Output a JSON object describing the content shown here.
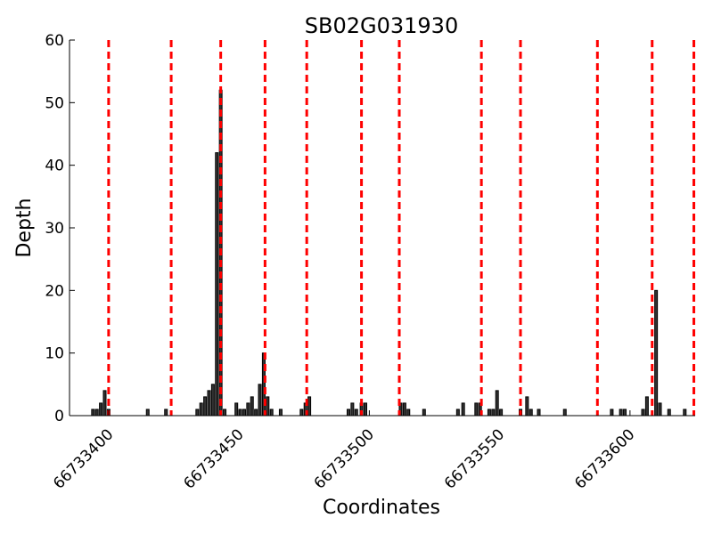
{
  "chart_data": {
    "type": "bar",
    "title": "SB02G031930",
    "xlabel": "Coordinates",
    "ylabel": "Depth",
    "xlim": [
      66733385,
      66733625
    ],
    "ylim": [
      0,
      60
    ],
    "yticks": [
      0,
      10,
      20,
      30,
      40,
      50,
      60
    ],
    "xticks": [
      66733400,
      66733450,
      66733500,
      66733550,
      66733600
    ],
    "grid": false,
    "bar_color": "#333333",
    "line_color": "#ff0000",
    "bars": [
      {
        "x": 66733394,
        "y": 1
      },
      {
        "x": 66733395,
        "y": 1
      },
      {
        "x": 66733396,
        "y": 2
      },
      {
        "x": 66733398,
        "y": 4
      },
      {
        "x": 66733400,
        "y": 1
      },
      {
        "x": 66733400,
        "y": 1
      },
      {
        "x": 66733400,
        "y": 1
      },
      {
        "x": 66733400,
        "y": 1
      },
      {
        "x": 66733400,
        "y": 1
      },
      {
        "x": 66733400,
        "y": 1
      },
      {
        "x": 66733400,
        "y": 1
      },
      {
        "x": 66733400,
        "y": 1
      },
      {
        "x": 66733400,
        "y": 1
      },
      {
        "x": 66733400,
        "y": 1
      },
      {
        "x": 66733400,
        "y": 1
      },
      {
        "x": 66733400,
        "y": 1
      },
      {
        "x": 66733400,
        "y": 1
      },
      {
        "x": 66733400,
        "y": 1
      }
    ],
    "bars_all": [
      {
        "x": 66733394,
        "y": 1
      },
      {
        "x": 66733395.5,
        "y": 1
      },
      {
        "x": 66733397,
        "y": 2
      },
      {
        "x": 66733398.5,
        "y": 4
      },
      {
        "x": 66733400,
        "y": 1
      },
      {
        "x": 66733415,
        "y": 1
      },
      {
        "x": 66733422,
        "y": 1
      },
      {
        "x": 66733434,
        "y": 1
      },
      {
        "x": 66733435.5,
        "y": 2
      },
      {
        "x": 66733437,
        "y": 3
      },
      {
        "x": 66733438.5,
        "y": 4
      },
      {
        "x": 66733440,
        "y": 5
      },
      {
        "x": 66733441.5,
        "y": 42
      },
      {
        "x": 66733443,
        "y": 52
      },
      {
        "x": 66733444.5,
        "y": 1
      },
      {
        "x": 66733449,
        "y": 2
      },
      {
        "x": 66733450.5,
        "y": 1
      },
      {
        "x": 66733452,
        "y": 1
      },
      {
        "x": 66733453.5,
        "y": 2
      },
      {
        "x": 66733455,
        "y": 3
      },
      {
        "x": 66733456.5,
        "y": 1
      },
      {
        "x": 66733458,
        "y": 5
      },
      {
        "x": 66733459.5,
        "y": 10
      },
      {
        "x": 66733461,
        "y": 3
      },
      {
        "x": 66733462.5,
        "y": 1
      },
      {
        "x": 66733466,
        "y": 1
      },
      {
        "x": 66733474,
        "y": 1
      },
      {
        "x": 66733475.5,
        "y": 2
      },
      {
        "x": 66733477,
        "y": 3
      },
      {
        "x": 66733492,
        "y": 1
      },
      {
        "x": 66733493.5,
        "y": 2
      },
      {
        "x": 66733495,
        "y": 1
      },
      {
        "x": 66733497,
        "y": 2
      },
      {
        "x": 66733498.5,
        "y": 2
      },
      {
        "x": 66733512,
        "y": 2
      },
      {
        "x": 66733513.5,
        "y": 2
      },
      {
        "x": 66733515,
        "y": 1
      },
      {
        "x": 66733521,
        "y": 1
      },
      {
        "x": 66733534,
        "y": 1
      },
      {
        "x": 66733536,
        "y": 2
      },
      {
        "x": 66733541,
        "y": 2
      },
      {
        "x": 66733542.5,
        "y": 2
      },
      {
        "x": 66733546,
        "y": 1
      },
      {
        "x": 66733547.5,
        "y": 1
      },
      {
        "x": 66733549,
        "y": 4
      },
      {
        "x": 66733550.5,
        "y": 1
      },
      {
        "x": 66733558,
        "y": 1
      },
      {
        "x": 66733560.5,
        "y": 3
      },
      {
        "x": 66733562,
        "y": 1
      },
      {
        "x": 66733565,
        "y": 1
      },
      {
        "x": 66733575,
        "y": 1
      },
      {
        "x": 66733593,
        "y": 1
      },
      {
        "x": 66733596.5,
        "y": 1
      },
      {
        "x": 66733598,
        "y": 1
      },
      {
        "x": 66733605,
        "y": 1
      },
      {
        "x": 66733606.5,
        "y": 3
      },
      {
        "x": 66733610,
        "y": 20
      },
      {
        "x": 66733611.5,
        "y": 2
      },
      {
        "x": 66733615,
        "y": 1
      },
      {
        "x": 66733621,
        "y": 1
      }
    ],
    "vlines": [
      66733400,
      66733424,
      66733443,
      66733460,
      66733476,
      66733497,
      66733511.5,
      66733543,
      66733558,
      66733587.5,
      66733608.5,
      66733624.5
    ]
  }
}
